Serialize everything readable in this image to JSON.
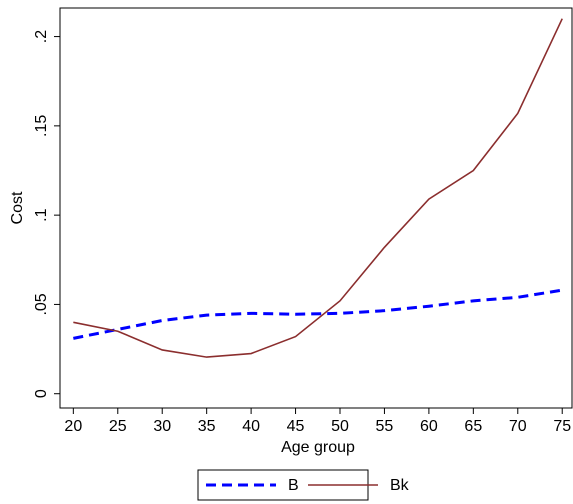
{
  "chart_data": {
    "type": "line",
    "x_label": "Age group",
    "y_label": "Cost",
    "x": [
      20,
      25,
      30,
      35,
      40,
      45,
      50,
      55,
      60,
      65,
      70,
      75
    ],
    "series": [
      {
        "name": "B",
        "color": "#0000ff",
        "dash": true,
        "values": [
          0.031,
          0.036,
          0.041,
          0.044,
          0.045,
          0.0445,
          0.045,
          0.0465,
          0.049,
          0.052,
          0.054,
          0.058
        ]
      },
      {
        "name": "Bk",
        "color": "#8b2e2e",
        "dash": false,
        "values": [
          0.04,
          0.035,
          0.0245,
          0.0205,
          0.0225,
          0.032,
          0.052,
          0.082,
          0.109,
          0.125,
          0.157,
          0.21
        ]
      }
    ],
    "xlim": [
      18.5,
      76.1
    ],
    "ylim": [
      -0.008,
      0.216
    ],
    "xticks": [
      20,
      25,
      30,
      35,
      40,
      45,
      50,
      55,
      60,
      65,
      70,
      75
    ],
    "yticks": [
      0,
      {
        "value": 0.05,
        "label": ".05"
      },
      {
        "value": 0.1,
        "label": ".1"
      },
      {
        "value": 0.15,
        "label": ".15"
      },
      {
        "value": 0.2,
        "label": ".2"
      }
    ],
    "legend_position": "bottom"
  }
}
